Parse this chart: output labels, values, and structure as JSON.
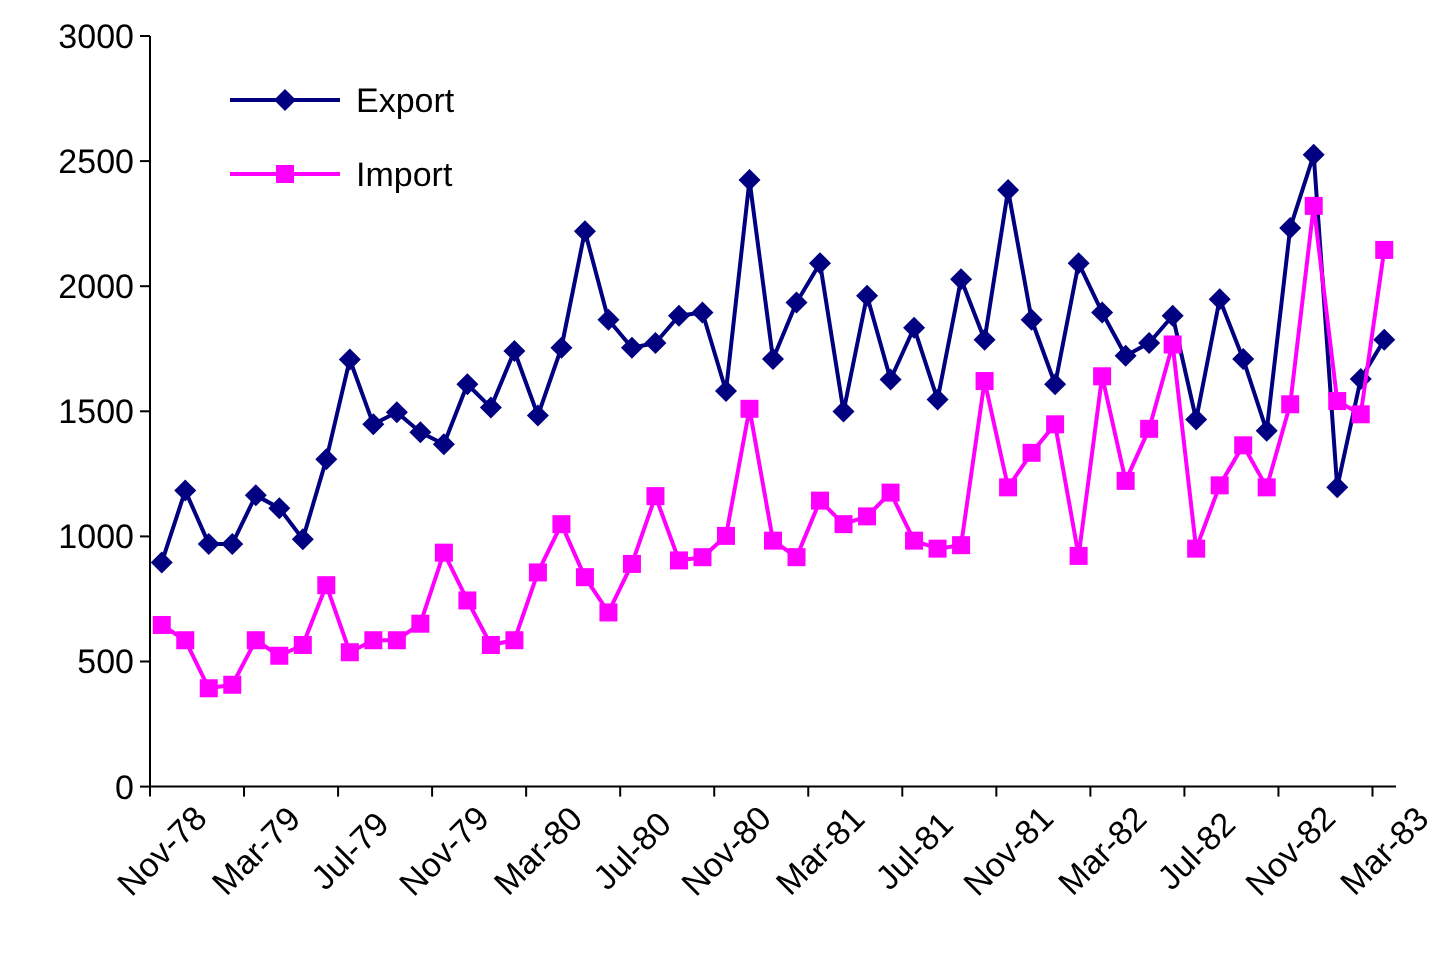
{
  "chart_data": {
    "type": "line",
    "categories": [
      "Nov-78",
      null,
      null,
      null,
      "Mar-79",
      null,
      null,
      null,
      "Jul-79",
      null,
      null,
      null,
      "Nov-79",
      null,
      null,
      null,
      "Mar-80",
      null,
      null,
      null,
      "Jul-80",
      null,
      null,
      null,
      "Nov-80",
      null,
      null,
      null,
      "Mar-81",
      null,
      null,
      null,
      "Jul-81",
      null,
      null,
      null,
      "Nov-81",
      null,
      null,
      null,
      "Mar-82",
      null,
      null,
      null,
      "Jul-82",
      null,
      null,
      null,
      "Nov-82",
      null,
      null,
      null,
      "Mar-83"
    ],
    "series": [
      {
        "name": "Export",
        "color": "#000080",
        "marker": "diamond",
        "values": [
          896,
          1183,
          970,
          970,
          1164,
          1113,
          989,
          1308,
          1707,
          1448,
          1496,
          1416,
          1368,
          1608,
          1515,
          1741,
          1483,
          1754,
          2220,
          1866,
          1754,
          1773,
          1882,
          1895,
          1581,
          2424,
          1709,
          1935,
          2092,
          1499,
          1962,
          1627,
          1834,
          1547,
          2028,
          1786,
          2384,
          1866,
          1608,
          2092,
          1895,
          1722,
          1773,
          1882,
          1467,
          1948,
          1709,
          1422,
          2233,
          2525,
          1196,
          1629,
          1786
        ]
      },
      {
        "name": "Import",
        "color": "#ff00ff",
        "marker": "square",
        "values": [
          646,
          585,
          393,
          407,
          585,
          523,
          566,
          805,
          537,
          585,
          585,
          651,
          935,
          744,
          566,
          585,
          856,
          1049,
          837,
          696,
          890,
          1161,
          904,
          917,
          1002,
          1510,
          983,
          917,
          1143,
          1049,
          1080,
          1175,
          983,
          951,
          965,
          1621,
          1196,
          1334,
          1448,
          922,
          1640,
          1222,
          1430,
          1767,
          951,
          1204,
          1364,
          1196,
          1528,
          2321,
          1541,
          1488,
          2145
        ]
      }
    ],
    "ylim": [
      0,
      3000
    ],
    "yticks": [
      0,
      500,
      1000,
      1500,
      2000,
      2500,
      3000
    ],
    "grid": false,
    "legend": "top left",
    "line_style": "solid"
  }
}
